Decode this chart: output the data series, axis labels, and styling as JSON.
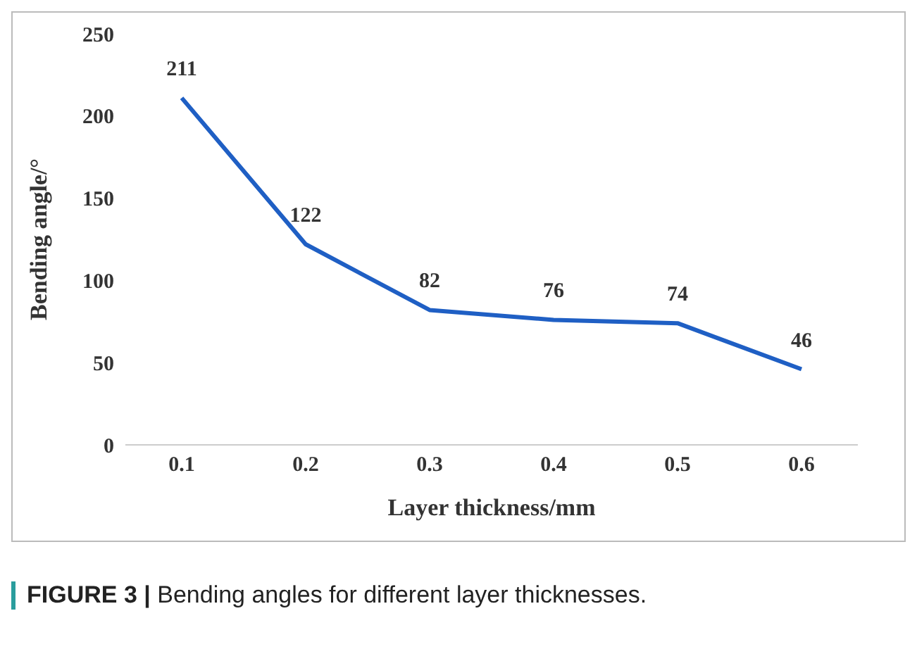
{
  "chart_data": {
    "type": "line",
    "categories": [
      "0.1",
      "0.2",
      "0.3",
      "0.4",
      "0.5",
      "0.6"
    ],
    "series": [
      {
        "color": "#1f5fc4",
        "values": [
          211,
          122,
          82,
          76,
          74,
          46
        ]
      }
    ],
    "ylim": [
      0,
      250
    ],
    "yticks": [
      0,
      50,
      100,
      150,
      200,
      250
    ],
    "xlabel": "Layer thickness/mm",
    "ylabel": "Bending angle/°",
    "data_labels": true,
    "grid": false,
    "legend": false,
    "marker": "none",
    "line_style": "solid",
    "annotations": [
      "FIGURE 3 | Bending angles for different layer thicknesses."
    ]
  }
}
